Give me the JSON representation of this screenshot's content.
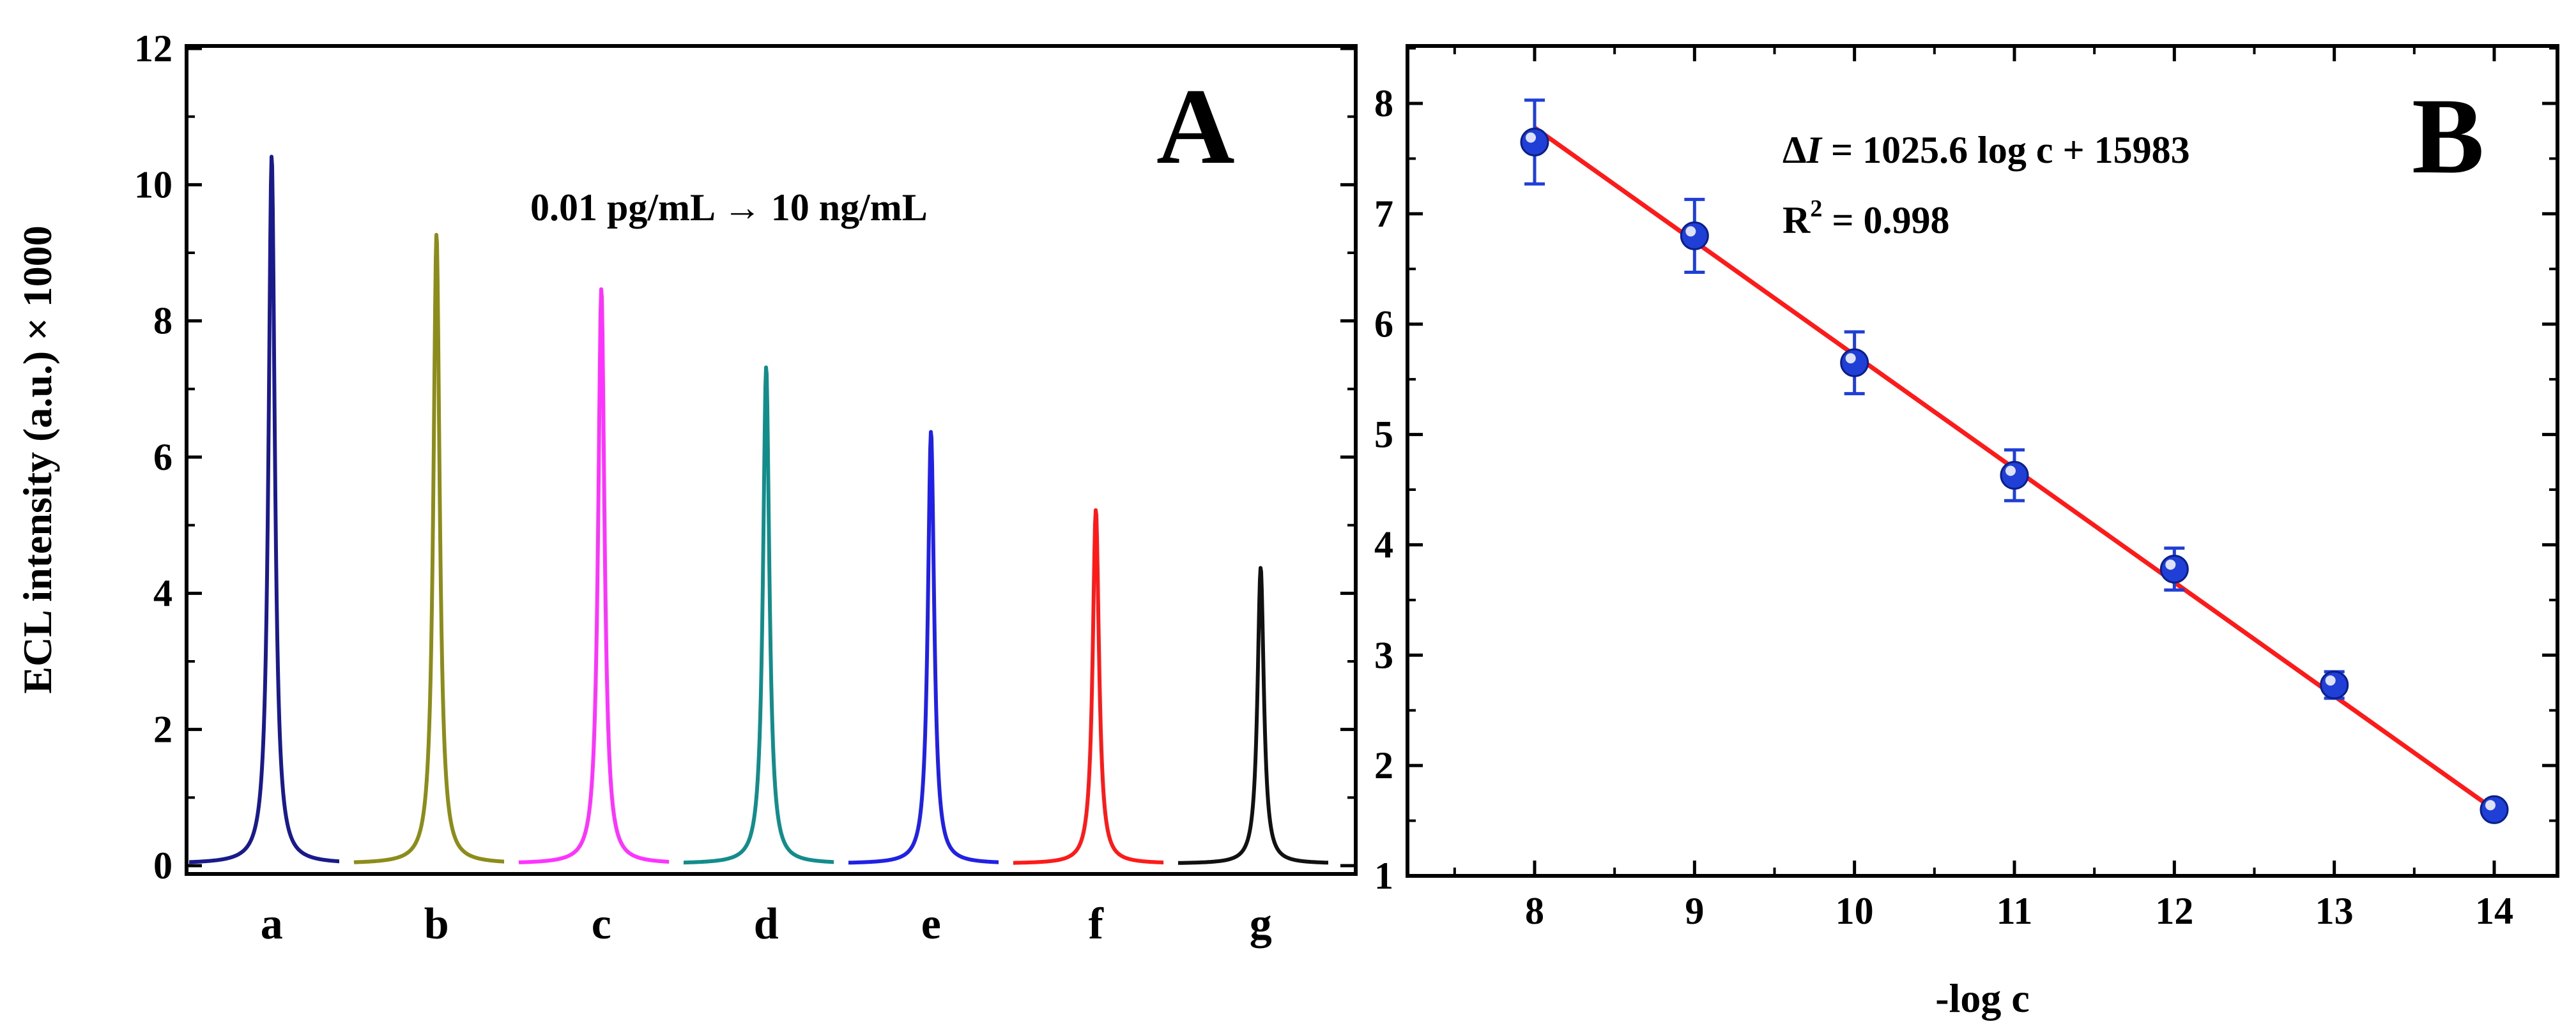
{
  "chart_data": [
    {
      "type": "line",
      "panel_label": "A",
      "annotation": "0.01 pg/mL → 10 ng/mL",
      "ylabel": "ECL intensity (a.u.) × 1000",
      "xlabel": "",
      "ylim": [
        0,
        12
      ],
      "yticks": [
        "0",
        "2",
        "4",
        "6",
        "8",
        "10",
        "12"
      ],
      "categories": [
        "a",
        "b",
        "c",
        "d",
        "e",
        "f",
        "g"
      ],
      "series": [
        {
          "name": "a",
          "peak": 10.4,
          "color": "#1a1a8c"
        },
        {
          "name": "b",
          "peak": 9.25,
          "color": "#8c8c1a"
        },
        {
          "name": "c",
          "peak": 8.45,
          "color": "#ff33ff"
        },
        {
          "name": "d",
          "peak": 7.3,
          "color": "#138c8c"
        },
        {
          "name": "e",
          "peak": 6.35,
          "color": "#2020e6"
        },
        {
          "name": "f",
          "peak": 5.2,
          "color": "#ff1a1a"
        },
        {
          "name": "g",
          "peak": 4.35,
          "color": "#111111"
        }
      ]
    },
    {
      "type": "scatter",
      "panel_label": "B",
      "xlabel": "-log c",
      "ylabel": "",
      "xlim": [
        7.5,
        14.5
      ],
      "ylim": [
        1,
        8.5
      ],
      "xticks": [
        "8",
        "9",
        "10",
        "11",
        "12",
        "13",
        "14"
      ],
      "yticks": [
        "1",
        "2",
        "3",
        "4",
        "5",
        "6",
        "7",
        "8"
      ],
      "points": [
        {
          "x": 8,
          "y": 7.65,
          "err": 0.38
        },
        {
          "x": 9,
          "y": 6.8,
          "err": 0.33
        },
        {
          "x": 10,
          "y": 5.65,
          "err": 0.28
        },
        {
          "x": 11,
          "y": 4.63,
          "err": 0.23
        },
        {
          "x": 12,
          "y": 3.78,
          "err": 0.19
        },
        {
          "x": 13,
          "y": 2.73,
          "err": 0.12
        },
        {
          "x": 14,
          "y": 1.6,
          "err": 0.06
        }
      ],
      "fit": {
        "x": [
          8,
          14
        ],
        "y": [
          7.78,
          1.6
        ]
      },
      "marker_color": "#1f3fd6",
      "fit_color": "#ff1a1a",
      "equation": {
        "delta": "Δ",
        "italic": "I",
        "rest": " = 1025.6 log c + 15983"
      },
      "r2": {
        "prefix": "R",
        "sup": "2",
        "rest": " = 0.998"
      }
    }
  ]
}
